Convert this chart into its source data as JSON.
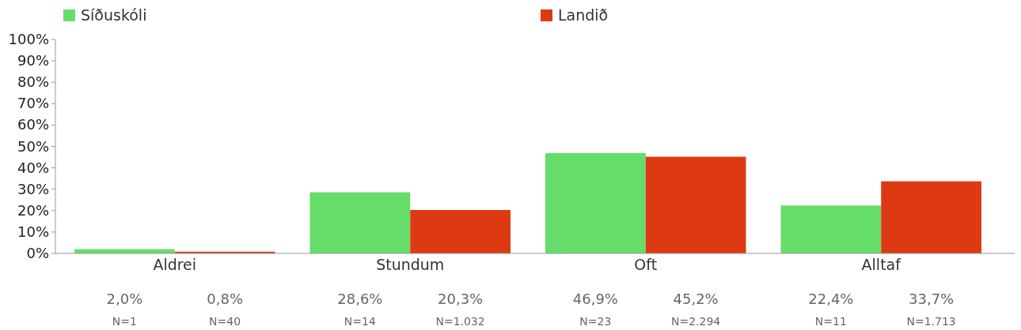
{
  "chart_data": {
    "type": "bar",
    "categories": [
      "Aldrei",
      "Stundum",
      "Oft",
      "Alltaf"
    ],
    "series": [
      {
        "name": "Síðuskóli",
        "color": "#66dd6a",
        "values": [
          2.0,
          28.6,
          46.9,
          22.4
        ],
        "value_labels": [
          "2,0%",
          "28,6%",
          "46,9%",
          "22,4%"
        ]
      },
      {
        "name": "Landið",
        "color": "#dd3a14",
        "values": [
          0.8,
          20.3,
          45.2,
          33.7
        ],
        "value_labels": [
          "0,8%",
          "20,3%",
          "45,2%",
          "33,7%"
        ]
      }
    ],
    "ylim": [
      0,
      100
    ],
    "yticks": [
      {
        "value": 0,
        "label": "0%"
      },
      {
        "value": 10,
        "label": "10%"
      },
      {
        "value": 20,
        "label": "20%"
      },
      {
        "value": 30,
        "label": "30%"
      },
      {
        "value": 40,
        "label": "40%"
      },
      {
        "value": 50,
        "label": "50%"
      },
      {
        "value": 60,
        "label": "60%"
      },
      {
        "value": 70,
        "label": "70%"
      },
      {
        "value": 80,
        "label": "80%"
      },
      {
        "value": 90,
        "label": "90%"
      },
      {
        "value": 100,
        "label": "100%"
      }
    ],
    "grid": false,
    "legend": "top",
    "annotations": [
      "N=1",
      "N=40",
      "N=14",
      "N=1.032",
      "N=23",
      "N=2.294",
      "N=11",
      "N=1.713"
    ]
  }
}
